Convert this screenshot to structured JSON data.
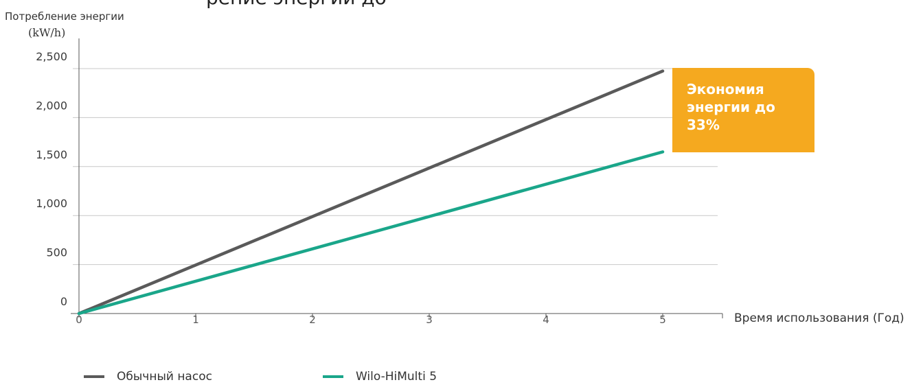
{
  "chart_data": {
    "type": "line",
    "x_ticks": [
      "0",
      "1",
      "2",
      "3",
      "4",
      "5"
    ],
    "y_ticks": [
      "0",
      "500",
      "1,000",
      "1,500",
      "2,000",
      "2,500"
    ],
    "xlim": [
      0,
      5
    ],
    "ylim": [
      0,
      2500
    ],
    "ylabel": "Потребление энергии",
    "yunit": "(kW/h)",
    "xlabel": "Время использования (Год)",
    "grid": true,
    "legend_position": "bottom",
    "series": [
      {
        "name": "Обычный насос",
        "color": "#5a5a5a",
        "x": [
          0,
          5
        ],
        "y": [
          0,
          2475
        ]
      },
      {
        "name": "Wilo-HiMulti 5",
        "color": "#1aa68a",
        "x": [
          0,
          5
        ],
        "y": [
          0,
          1650
        ]
      }
    ],
    "annotation": {
      "text": "Экономия энергии до 33%",
      "color": "#f5a91f"
    }
  }
}
